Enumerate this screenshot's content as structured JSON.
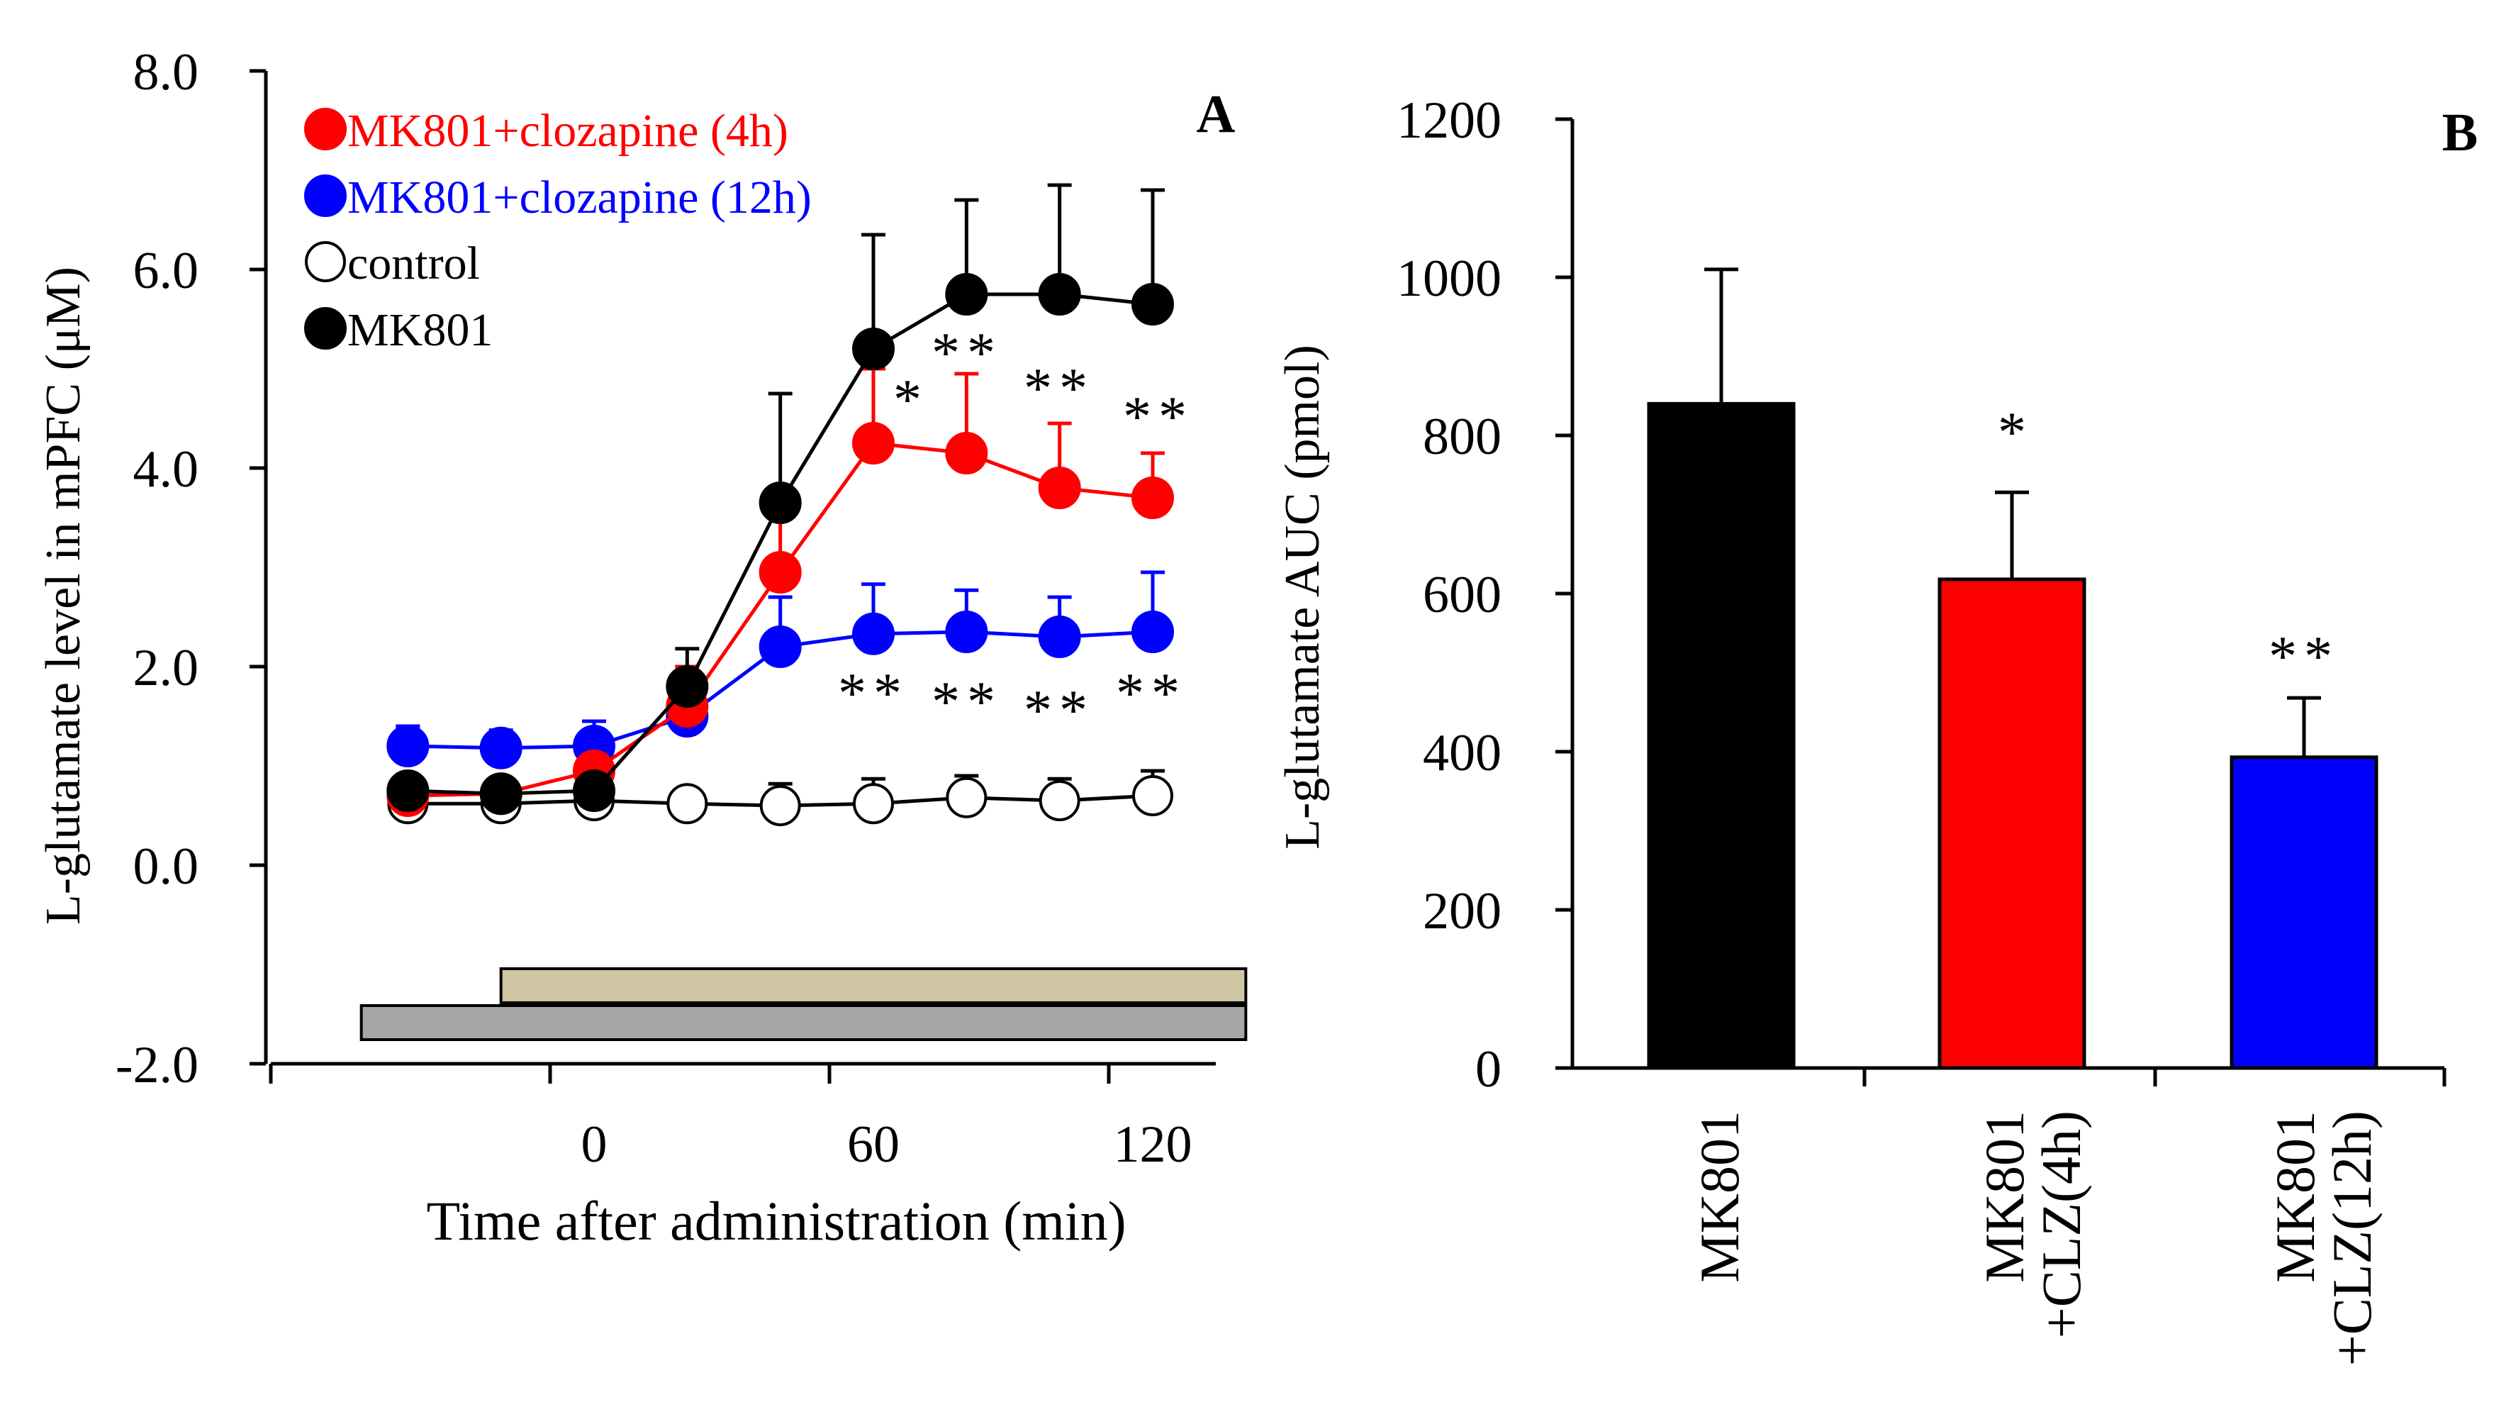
{
  "chart_data": [
    {
      "panel_label": "A",
      "type": "line",
      "xlabel": "Time after administration (min)",
      "ylabel": "L-glutamate level in mPFC (μM)",
      "ylim": [
        -2.0,
        8.0
      ],
      "yticks": [
        "8.0",
        "6.0",
        "4.0",
        "2.0",
        "0.0",
        "-2.0"
      ],
      "xticks": [
        "0",
        "60",
        "120"
      ],
      "x": [
        -40,
        -20,
        0,
        20,
        40,
        60,
        80,
        100,
        120
      ],
      "series": [
        {
          "name": "MK801",
          "marker": "filled",
          "color": "#000000",
          "values": [
            0.75,
            0.72,
            0.75,
            1.8,
            3.65,
            5.2,
            5.75,
            5.75,
            5.65
          ],
          "errors": [
            0.1,
            0.08,
            0.1,
            0.38,
            1.1,
            1.15,
            0.95,
            1.1,
            1.15
          ]
        },
        {
          "name": "MK801+clozapine (4h)",
          "marker": "filled",
          "color": "#ff0000",
          "values": [
            0.7,
            0.72,
            0.95,
            1.6,
            2.95,
            4.25,
            4.15,
            3.8,
            3.7
          ],
          "errors": [
            0.1,
            0.1,
            0.15,
            0.4,
            0.6,
            0.75,
            0.8,
            0.65,
            0.45
          ]
        },
        {
          "name": "MK801+clozapine (12h)",
          "marker": "filled",
          "color": "#0000ff",
          "values": [
            1.2,
            1.18,
            1.2,
            1.5,
            2.2,
            2.33,
            2.35,
            2.3,
            2.35
          ],
          "errors": [
            0.2,
            0.18,
            0.25,
            0.25,
            0.5,
            0.5,
            0.42,
            0.4,
            0.6
          ]
        },
        {
          "name": "control",
          "marker": "open",
          "color": "#000000",
          "values": [
            0.62,
            0.62,
            0.65,
            0.62,
            0.6,
            0.62,
            0.68,
            0.65,
            0.7
          ],
          "errors": [
            0.1,
            0.1,
            0.12,
            0.15,
            0.22,
            0.25,
            0.22,
            0.22,
            0.25
          ]
        }
      ],
      "significance_red": [
        "*",
        "**",
        "**",
        "**"
      ],
      "significance_blue": [
        "**",
        "**",
        "**",
        "**"
      ],
      "treatment_bars": [
        {
          "from": -20,
          "to": 140,
          "color": "#cec5a3"
        },
        {
          "from": -50,
          "to": 140,
          "color": "#a6a6a6"
        }
      ]
    },
    {
      "panel_label": "B",
      "type": "bar",
      "ylabel": "L-glutamate AUC (pmol)",
      "ylim": [
        0,
        1200
      ],
      "yticks": [
        "1200",
        "1000",
        "800",
        "600",
        "400",
        "200",
        "0"
      ],
      "categories": [
        {
          "line1": "MK801",
          "line2": ""
        },
        {
          "line1": "MK801",
          "line2": "+CLZ(4h)"
        },
        {
          "line1": "MK801",
          "line2": "+CLZ(12h)"
        }
      ],
      "values": [
        840,
        618,
        393
      ],
      "errors": [
        170,
        110,
        75
      ],
      "colors": [
        "#000000",
        "#ff0000",
        "#0000ff"
      ],
      "significance": [
        "",
        "*",
        "**"
      ]
    }
  ]
}
